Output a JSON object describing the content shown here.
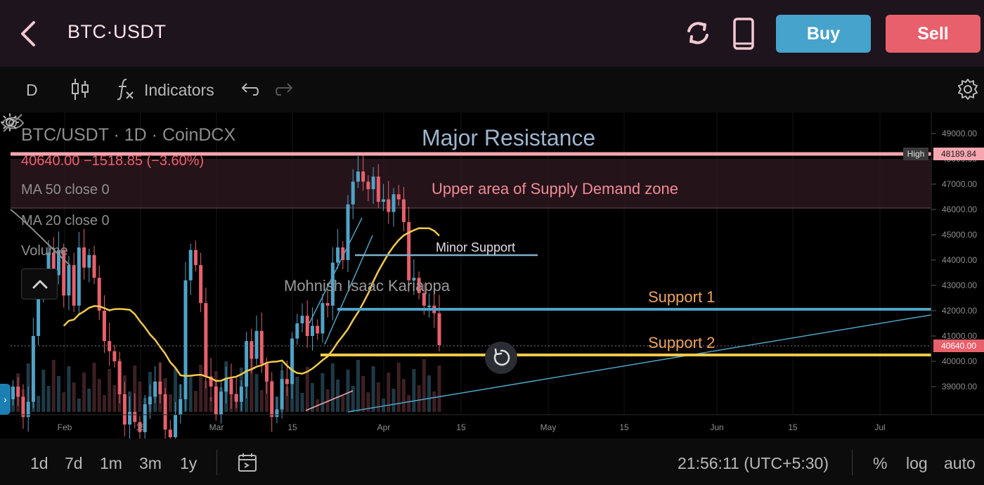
{
  "header": {
    "title": "BTC·USDT",
    "buy_label": "Buy",
    "sell_label": "Sell"
  },
  "toolbar": {
    "interval": "D",
    "indicators_label": "Indicators"
  },
  "legend": {
    "symbol": "BTC/USDT · 1D · CoinDCX",
    "price_line": "40640.00  −1518.85 (−3.60%)",
    "ma50": "MA 50 close 0",
    "ma20": "MA 20 close 0",
    "volume": "Volume"
  },
  "annotations": {
    "major_resistance": "Major Resistance",
    "supply_zone": "Upper area of Supply Demand zone",
    "minor_support": "Minor Support",
    "author": "Mohnish Isaac Kariappa",
    "support1": "Support 1",
    "support2": "Support 2"
  },
  "price_axis": {
    "ticks": [
      "49000.00",
      "48000.00",
      "47000.00",
      "46000.00",
      "45000.00",
      "44000.00",
      "43000.00",
      "42000.00",
      "41000.00",
      "40000.00",
      "39000.00"
    ],
    "tick_values": [
      49000,
      48000,
      47000,
      46000,
      45000,
      44000,
      43000,
      42000,
      41000,
      40000,
      39000
    ],
    "high_label": "High",
    "high_value": "48189.84",
    "last_value": "40640.00"
  },
  "time_axis": {
    "labels": [
      "Feb",
      "15",
      "Mar",
      "15",
      "Apr",
      "15",
      "May",
      "15",
      "Jun",
      "15",
      "Jul"
    ]
  },
  "chart_data": {
    "type": "candlestick",
    "ylim": [
      38000,
      49500
    ],
    "levels": {
      "major_resistance": 48189.84,
      "supply_zone_low": 46100,
      "minor_support": 44200,
      "support1": 42100,
      "support2": 40300,
      "last": 40640
    }
  },
  "bottom": {
    "ranges": [
      "1d",
      "7d",
      "1m",
      "3m",
      "1y"
    ],
    "clock": "21:56:11 (UTC+5:30)",
    "percent_label": "%",
    "log_label": "log",
    "auto_label": "auto"
  },
  "colors": {
    "up": "#4fa3c7",
    "down": "#e8606b",
    "ma": "#f2c94c",
    "resistance": "#f7a6b0",
    "support1": "#4fa3c7",
    "support2": "#f2c94c",
    "buy": "#46a3cc",
    "sell": "#e8606b"
  }
}
